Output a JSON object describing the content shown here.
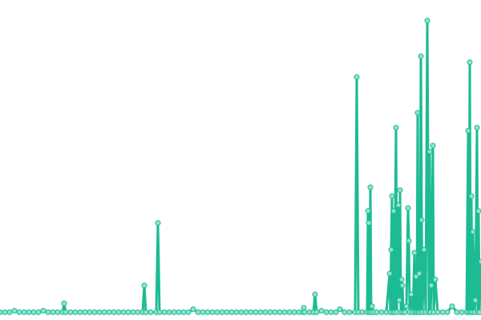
{
  "chart_data": {
    "type": "line",
    "color": "#1dbb93",
    "xlim": [
      0,
      600
    ],
    "ylim": [
      0,
      100
    ],
    "x": [
      0,
      6,
      12,
      18,
      24,
      30,
      36,
      42,
      48,
      54,
      60,
      66,
      72,
      78,
      80,
      82,
      88,
      94,
      100,
      106,
      112,
      118,
      124,
      130,
      136,
      142,
      148,
      154,
      160,
      166,
      172,
      178,
      180,
      182,
      188,
      195,
      197,
      199,
      205,
      211,
      217,
      223,
      229,
      235,
      241,
      247,
      253,
      259,
      265,
      271,
      277,
      283,
      289,
      295,
      301,
      307,
      313,
      319,
      325,
      331,
      337,
      343,
      349,
      355,
      361,
      367,
      373,
      378,
      379,
      380,
      386,
      391,
      393,
      395,
      401,
      407,
      413,
      419,
      424,
      430,
      436,
      443,
      445,
      447,
      452,
      458,
      459,
      460,
      461,
      462,
      463,
      464,
      466,
      470,
      476,
      482,
      486,
      487,
      488,
      489,
      490,
      491,
      492,
      494,
      495,
      497,
      498,
      499,
      500,
      501,
      502,
      503,
      505,
      507,
      509,
      510,
      511,
      513,
      515,
      517,
      518,
      519,
      520,
      521,
      522,
      523,
      524,
      525,
      526,
      527,
      529,
      531,
      533,
      535,
      536,
      537,
      538,
      540,
      541,
      543,
      546,
      552,
      558,
      564,
      570,
      576,
      582,
      584,
      585,
      586,
      587,
      588,
      589,
      590,
      592,
      593,
      595,
      596,
      597,
      598,
      600
    ],
    "values": [
      1,
      1,
      1,
      1.5,
      1,
      1,
      1,
      1,
      1,
      1.5,
      1,
      1,
      1,
      1,
      4,
      1,
      1,
      1,
      1,
      1,
      1,
      1,
      1,
      1,
      1,
      1,
      1,
      1,
      1,
      1,
      1,
      1,
      10,
      1,
      1,
      1,
      31,
      1,
      1,
      1,
      1,
      1,
      1,
      1,
      2,
      1,
      1,
      1,
      1,
      1,
      1,
      1,
      1,
      1,
      1,
      1,
      1,
      1,
      1,
      1,
      1,
      1,
      1,
      1,
      1,
      1,
      1,
      1,
      2.5,
      1,
      1,
      1,
      7,
      1,
      1.5,
      1,
      1,
      1,
      2,
      1,
      1,
      1,
      80,
      1,
      1,
      1,
      35,
      31,
      1,
      43,
      1,
      3,
      1,
      1,
      1,
      1,
      14,
      1,
      22,
      40,
      1,
      35,
      1,
      63,
      1,
      37,
      5,
      42,
      1,
      12,
      10,
      1,
      1,
      3,
      36,
      25,
      1,
      7,
      1,
      21,
      1,
      13,
      1,
      68,
      1,
      14,
      1,
      87,
      32,
      1,
      22,
      1,
      99,
      1,
      55,
      1,
      10,
      57,
      1,
      12,
      1,
      1,
      1,
      3,
      1,
      1,
      1,
      62,
      1,
      85,
      1,
      40,
      1,
      28,
      1,
      5,
      63,
      1,
      35,
      1,
      18
    ]
  }
}
